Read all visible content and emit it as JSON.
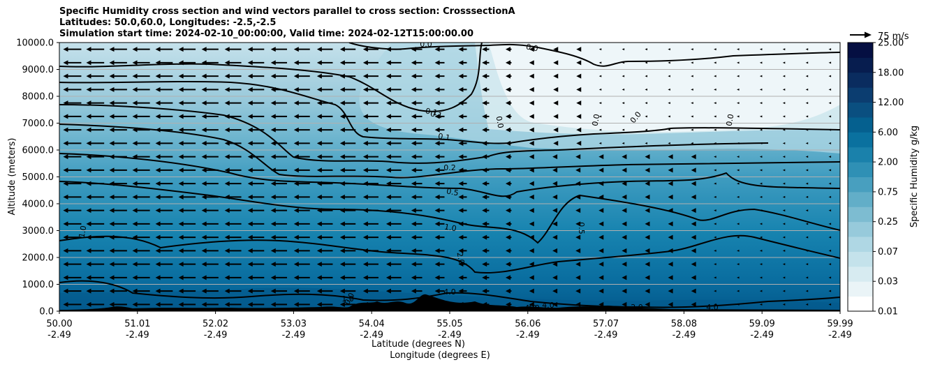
{
  "chart_data": {
    "type": "heatmap",
    "title_lines": [
      "Specific Humidity cross section and wind vectors parallel to cross section: CrosssectionA",
      "Latitudes: 50.0,60.0, Longitudes: -2.5,-2.5",
      "Simulation start time: 2024-02-10_00:00:00, Valid time: 2024-02-12T15:00:00.00"
    ],
    "ylabel": "Altitude (meters)",
    "xlabel_lat": "Latitude (degrees N)",
    "xlabel_lon": "Longitude (degrees E)",
    "ylim": [
      0,
      10000
    ],
    "yticks": [
      "0.0",
      "1000.0",
      "2000.0",
      "3000.0",
      "4000.0",
      "5000.0",
      "6000.0",
      "7000.0",
      "8000.0",
      "9000.0",
      "10000.0"
    ],
    "xticks_lat": [
      "50.00",
      "51.01",
      "52.02",
      "53.03",
      "54.04",
      "55.05",
      "56.06",
      "57.07",
      "58.08",
      "59.09",
      "59.99"
    ],
    "xticks_lon": [
      "-2.49",
      "-2.49",
      "-2.49",
      "-2.49",
      "-2.49",
      "-2.49",
      "-2.49",
      "-2.49",
      "-2.49",
      "-2.49",
      "-2.49"
    ],
    "colorbar_label": "Specific Humidity g/kg",
    "colorbar_ticks": [
      "0.01",
      "0.03",
      "0.07",
      "0.25",
      "0.75",
      "2.00",
      "6.00",
      "12.00",
      "18.00",
      "25.00"
    ],
    "quiver_key": "75 m/s",
    "contour_labels": [
      "0.0",
      "0.0",
      "0.1",
      "0.1",
      "0.1",
      "0.0",
      "0.2",
      "0.5",
      "1.0",
      "1.0",
      "2.0",
      "4.0",
      "4.0",
      "4.0",
      "0.0",
      "0.0",
      "0.0",
      "0.0",
      "0.5",
      "4.0",
      "2.0",
      "1.0",
      "4.0"
    ],
    "colors": {
      "levels": [
        "#ffffff",
        "#eaf4f7",
        "#d7ebf1",
        "#c4e2eb",
        "#afd7e4",
        "#97cadb",
        "#7dbcd1",
        "#62aec8",
        "#489fbf",
        "#2f90b5",
        "#1a81ab",
        "#0a719f",
        "#05608f",
        "#0a4f80",
        "#0b3d70",
        "#0a2c5f",
        "#071d4f",
        "#050f42"
      ],
      "contour": "#000000",
      "terrain": "#000000",
      "grid": "#b0b0b0"
    }
  }
}
